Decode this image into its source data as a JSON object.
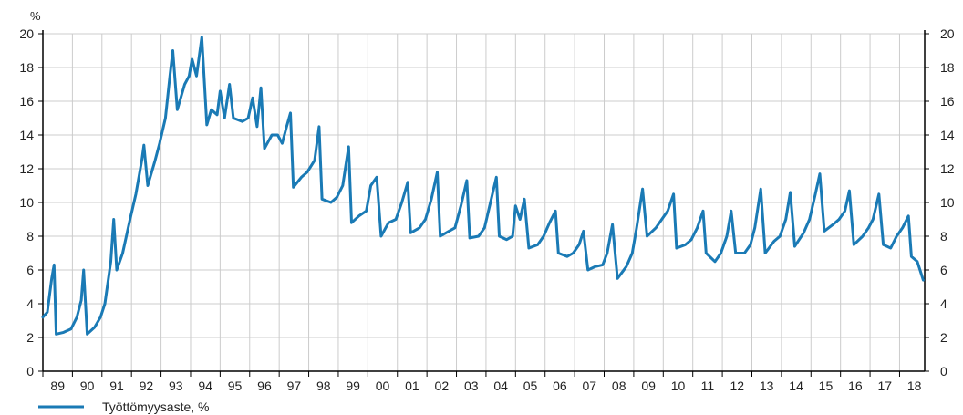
{
  "chart_data": {
    "type": "line",
    "y_unit_label": "%",
    "ylim": [
      0,
      20
    ],
    "y_ticks": [
      0,
      2,
      4,
      6,
      8,
      10,
      12,
      14,
      16,
      18,
      20
    ],
    "x_tick_labels": [
      "89",
      "90",
      "91",
      "92",
      "93",
      "94",
      "95",
      "96",
      "97",
      "98",
      "99",
      "00",
      "01",
      "02",
      "03",
      "04",
      "05",
      "06",
      "07",
      "08",
      "09",
      "10",
      "11",
      "12",
      "13",
      "14",
      "15",
      "16",
      "17",
      "18"
    ],
    "x_range_years": [
      1989,
      2018.85
    ],
    "grid": true,
    "legend_position": "bottom-left",
    "colors": {
      "series": "#1a7ab5",
      "grid": "#cccccc",
      "axis": "#000000"
    },
    "series": [
      {
        "name": "Työttömyysaste, %",
        "points": [
          [
            1989.0,
            3.2
          ],
          [
            1989.15,
            3.5
          ],
          [
            1989.3,
            5.5
          ],
          [
            1989.38,
            6.3
          ],
          [
            1989.45,
            2.2
          ],
          [
            1989.7,
            2.3
          ],
          [
            1989.95,
            2.5
          ],
          [
            1990.15,
            3.2
          ],
          [
            1990.3,
            4.2
          ],
          [
            1990.38,
            6.0
          ],
          [
            1990.5,
            2.2
          ],
          [
            1990.75,
            2.6
          ],
          [
            1990.95,
            3.2
          ],
          [
            1991.1,
            4.0
          ],
          [
            1991.3,
            6.5
          ],
          [
            1991.4,
            9.0
          ],
          [
            1991.5,
            6.0
          ],
          [
            1991.7,
            7.0
          ],
          [
            1991.95,
            9.0
          ],
          [
            1992.15,
            10.5
          ],
          [
            1992.35,
            12.5
          ],
          [
            1992.42,
            13.4
          ],
          [
            1992.55,
            11.0
          ],
          [
            1992.8,
            12.5
          ],
          [
            1992.95,
            13.5
          ],
          [
            1993.15,
            15.0
          ],
          [
            1993.3,
            17.5
          ],
          [
            1993.4,
            19.0
          ],
          [
            1993.55,
            15.5
          ],
          [
            1993.8,
            17.0
          ],
          [
            1993.95,
            17.5
          ],
          [
            1994.05,
            18.5
          ],
          [
            1994.2,
            17.5
          ],
          [
            1994.38,
            19.8
          ],
          [
            1994.55,
            14.6
          ],
          [
            1994.7,
            15.5
          ],
          [
            1994.9,
            15.2
          ],
          [
            1995.0,
            16.6
          ],
          [
            1995.15,
            15.0
          ],
          [
            1995.32,
            17.0
          ],
          [
            1995.45,
            15.0
          ],
          [
            1995.75,
            14.8
          ],
          [
            1995.95,
            15.0
          ],
          [
            1996.1,
            16.2
          ],
          [
            1996.25,
            14.5
          ],
          [
            1996.38,
            16.8
          ],
          [
            1996.5,
            13.2
          ],
          [
            1996.75,
            14.0
          ],
          [
            1996.95,
            14.0
          ],
          [
            1997.1,
            13.5
          ],
          [
            1997.25,
            14.5
          ],
          [
            1997.38,
            15.3
          ],
          [
            1997.48,
            10.9
          ],
          [
            1997.75,
            11.5
          ],
          [
            1997.95,
            11.8
          ],
          [
            1998.2,
            12.5
          ],
          [
            1998.35,
            14.5
          ],
          [
            1998.45,
            10.2
          ],
          [
            1998.75,
            10.0
          ],
          [
            1998.95,
            10.3
          ],
          [
            1999.15,
            11.0
          ],
          [
            1999.35,
            13.3
          ],
          [
            1999.45,
            8.8
          ],
          [
            1999.7,
            9.2
          ],
          [
            1999.95,
            9.5
          ],
          [
            2000.1,
            11.0
          ],
          [
            2000.3,
            11.5
          ],
          [
            2000.45,
            8.0
          ],
          [
            2000.7,
            8.8
          ],
          [
            2000.95,
            9.0
          ],
          [
            2001.15,
            10.0
          ],
          [
            2001.35,
            11.2
          ],
          [
            2001.45,
            8.2
          ],
          [
            2001.75,
            8.5
          ],
          [
            2001.95,
            9.0
          ],
          [
            2002.15,
            10.2
          ],
          [
            2002.35,
            11.8
          ],
          [
            2002.45,
            8.0
          ],
          [
            2002.75,
            8.3
          ],
          [
            2002.95,
            8.5
          ],
          [
            2003.15,
            9.8
          ],
          [
            2003.35,
            11.3
          ],
          [
            2003.45,
            7.9
          ],
          [
            2003.75,
            8.0
          ],
          [
            2003.95,
            8.5
          ],
          [
            2004.15,
            10.0
          ],
          [
            2004.35,
            11.5
          ],
          [
            2004.45,
            8.0
          ],
          [
            2004.7,
            7.8
          ],
          [
            2004.9,
            8.0
          ],
          [
            2005.0,
            9.8
          ],
          [
            2005.15,
            9.0
          ],
          [
            2005.3,
            10.2
          ],
          [
            2005.45,
            7.3
          ],
          [
            2005.75,
            7.5
          ],
          [
            2005.95,
            8.0
          ],
          [
            2006.15,
            8.8
          ],
          [
            2006.35,
            9.5
          ],
          [
            2006.45,
            7.0
          ],
          [
            2006.75,
            6.8
          ],
          [
            2006.95,
            7.0
          ],
          [
            2007.15,
            7.5
          ],
          [
            2007.3,
            8.3
          ],
          [
            2007.45,
            6.0
          ],
          [
            2007.7,
            6.2
          ],
          [
            2007.95,
            6.3
          ],
          [
            2008.1,
            7.0
          ],
          [
            2008.28,
            8.7
          ],
          [
            2008.45,
            5.5
          ],
          [
            2008.75,
            6.2
          ],
          [
            2008.95,
            7.0
          ],
          [
            2009.1,
            8.5
          ],
          [
            2009.3,
            10.8
          ],
          [
            2009.45,
            8.0
          ],
          [
            2009.75,
            8.5
          ],
          [
            2009.95,
            9.0
          ],
          [
            2010.15,
            9.5
          ],
          [
            2010.35,
            10.5
          ],
          [
            2010.45,
            7.3
          ],
          [
            2010.75,
            7.5
          ],
          [
            2010.95,
            7.8
          ],
          [
            2011.15,
            8.5
          ],
          [
            2011.35,
            9.5
          ],
          [
            2011.45,
            7.0
          ],
          [
            2011.75,
            6.5
          ],
          [
            2011.95,
            7.0
          ],
          [
            2012.15,
            8.0
          ],
          [
            2012.3,
            9.5
          ],
          [
            2012.45,
            7.0
          ],
          [
            2012.75,
            7.0
          ],
          [
            2012.95,
            7.5
          ],
          [
            2013.1,
            8.5
          ],
          [
            2013.3,
            10.8
          ],
          [
            2013.45,
            7.0
          ],
          [
            2013.75,
            7.7
          ],
          [
            2013.95,
            8.0
          ],
          [
            2014.15,
            9.0
          ],
          [
            2014.3,
            10.6
          ],
          [
            2014.45,
            7.4
          ],
          [
            2014.75,
            8.2
          ],
          [
            2014.95,
            9.0
          ],
          [
            2015.15,
            10.5
          ],
          [
            2015.3,
            11.7
          ],
          [
            2015.45,
            8.3
          ],
          [
            2015.75,
            8.7
          ],
          [
            2015.95,
            9.0
          ],
          [
            2016.15,
            9.5
          ],
          [
            2016.3,
            10.7
          ],
          [
            2016.45,
            7.5
          ],
          [
            2016.75,
            8.0
          ],
          [
            2016.95,
            8.5
          ],
          [
            2017.1,
            9.0
          ],
          [
            2017.3,
            10.5
          ],
          [
            2017.45,
            7.5
          ],
          [
            2017.7,
            7.3
          ],
          [
            2017.9,
            8.0
          ],
          [
            2018.1,
            8.5
          ],
          [
            2018.3,
            9.2
          ],
          [
            2018.4,
            6.8
          ],
          [
            2018.6,
            6.5
          ],
          [
            2018.8,
            5.4
          ]
        ]
      }
    ]
  }
}
